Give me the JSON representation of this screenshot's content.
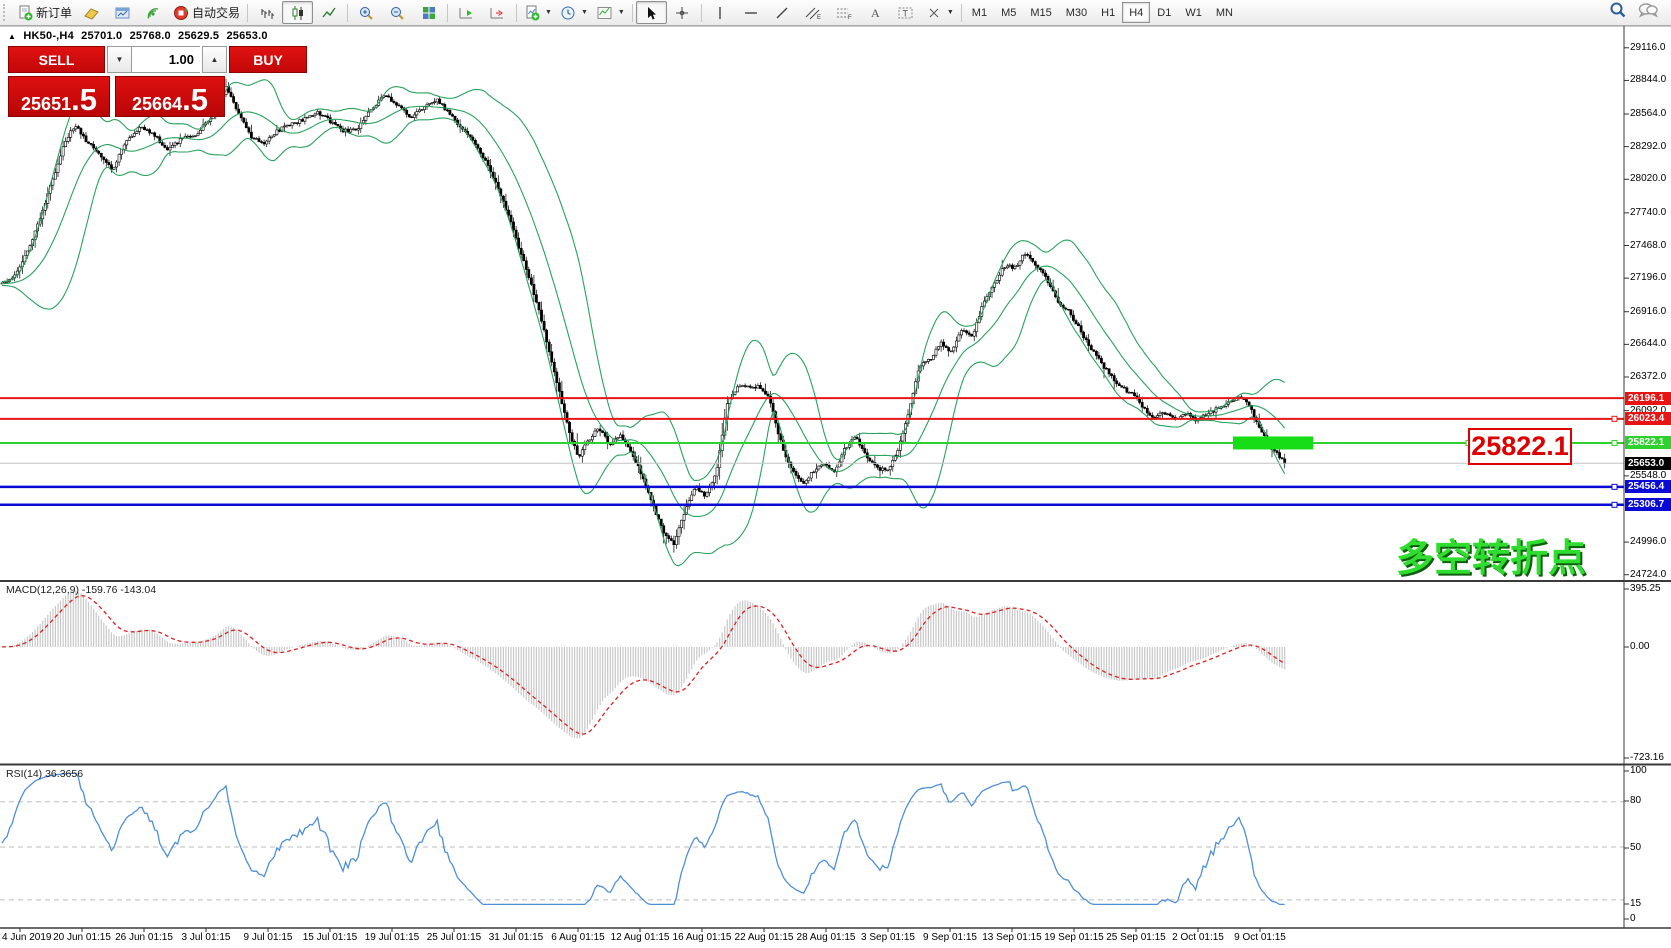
{
  "toolbar": {
    "new_order_label": "新订单",
    "autotrade_label": "自动交易",
    "timeframes": [
      "M1",
      "M5",
      "M15",
      "M30",
      "H1",
      "H4",
      "D1",
      "W1",
      "MN"
    ],
    "active_timeframe": "H4"
  },
  "chart_header": {
    "collapse_arrow": "▲",
    "symbol_period": "HK50-,H4",
    "open": "25701.0",
    "high": "25768.0",
    "low": "25629.5",
    "close": "25653.0"
  },
  "trade_panel": {
    "sell_label": "SELL",
    "buy_label": "BUY",
    "volume": "1.00",
    "spin_down": "▼",
    "spin_up": "▲",
    "sell_price_int": "25651",
    "sell_price_frac": ".5",
    "buy_price_int": "25664",
    "buy_price_frac": ".5"
  },
  "annotations": {
    "callout_price": "25822.1",
    "turning_point_text": "多空转折点"
  },
  "macd_panel": {
    "label": "MACD(12,26,9)",
    "value_main": "-159.76",
    "value_signal": "-143.04"
  },
  "rsi_panel": {
    "label": "RSI(14) 36.3656"
  },
  "chart_data": {
    "type": "candlestick",
    "symbol": "HK50-",
    "timeframe": "H4",
    "last_ohlc": {
      "open": 25701.0,
      "high": 25768.0,
      "low": 25629.5,
      "close": 25653.0
    },
    "bid_price": 25651.5,
    "ask_price": 25664.5,
    "y_ticks": [
      29116.0,
      28844.0,
      28564.0,
      28292.0,
      28020.0,
      27740.0,
      27468.0,
      27196.0,
      26916.0,
      26644.0,
      26372.0,
      26092.0,
      25548.0,
      24996.0,
      24724.0
    ],
    "price_badges": [
      {
        "value": 26196.1,
        "color": "#e81414"
      },
      {
        "value": 26023.4,
        "color": "#e81414"
      },
      {
        "value": 25822.1,
        "color": "#2fd12f"
      },
      {
        "value": 25653.0,
        "color": "#000000"
      },
      {
        "value": 25456.4,
        "color": "#0a0ad6"
      },
      {
        "value": 25306.7,
        "color": "#0a0ad6"
      }
    ],
    "h_lines": [
      {
        "value": 26196.1,
        "color": "#e81414",
        "w": 2,
        "handles": []
      },
      {
        "value": 26023.4,
        "color": "#e81414",
        "w": 2,
        "handles": [
          1612
        ]
      },
      {
        "value": 25822.1,
        "color": "#2fd12f",
        "w": 2,
        "handles": [
          1466,
          1612
        ]
      },
      {
        "value": 25653.0,
        "color": "#c4c4c4",
        "w": 1,
        "handles": []
      },
      {
        "value": 25456.4,
        "color": "#0a0ad6",
        "w": 2.5,
        "handles": [
          1612
        ]
      },
      {
        "value": 25306.7,
        "color": "#0a0ad6",
        "w": 2.5,
        "handles": [
          1612
        ]
      }
    ],
    "highlight_bar": {
      "x": 1233,
      "width": 80,
      "price": 25822.1,
      "thickness": 13,
      "color": "#17dd17"
    },
    "time_labels": [
      "4 Jun 2019",
      "20 Jun 01:15",
      "26 Jun 01:15",
      "3 Jul 01:15",
      "9 Jul 01:15",
      "15 Jul 01:15",
      "19 Jul 01:15",
      "25 Jul 01:15",
      "31 Jul 01:15",
      "6 Aug 01:15",
      "12 Aug 01:15",
      "16 Aug 01:15",
      "22 Aug 01:15",
      "28 Aug 01:15",
      "3 Sep 01:15",
      "9 Sep 01:15",
      "13 Sep 01:15",
      "19 Sep 01:15",
      "25 Sep 01:15",
      "2 Oct 01:15",
      "9 Oct 01:15"
    ],
    "indicators": {
      "bollinger": {
        "period": 20,
        "deviation": 2,
        "color": "#2aa25c"
      },
      "macd": {
        "fast": 12,
        "slow": 26,
        "signal": 9,
        "main": -159.76,
        "signal_value": -143.04,
        "axis": {
          "max": 395.25,
          "zero": 0.0,
          "min": -723.16
        },
        "hist_color": "#c8c8c8",
        "signal_color": "#e02020"
      },
      "rsi": {
        "period": 14,
        "value": 36.3656,
        "levels": [
          80,
          50,
          15
        ],
        "axis": [
          100,
          80,
          50,
          15,
          0
        ],
        "color": "#4f8fd8"
      }
    },
    "price_anchors": {
      "x": [
        0,
        16,
        32,
        48,
        64,
        75,
        85,
        101,
        112,
        126,
        141,
        155,
        168,
        181,
        197,
        213,
        226,
        237,
        251,
        264,
        277,
        290,
        304,
        318,
        331,
        343,
        357,
        371,
        384,
        397,
        411,
        424,
        437,
        450,
        464,
        478,
        490,
        503,
        515,
        527,
        538,
        549,
        559,
        568,
        578,
        589,
        599,
        610,
        620,
        631,
        642,
        653,
        663,
        674,
        685,
        695,
        706,
        717,
        727,
        738,
        749,
        759,
        770,
        780,
        791,
        802,
        813,
        823,
        834,
        845,
        855,
        866,
        877,
        887,
        898,
        909,
        919,
        930,
        941,
        951,
        962,
        973,
        983,
        994,
        1005,
        1015,
        1026,
        1037,
        1047,
        1058,
        1069,
        1079,
        1090,
        1100,
        1111,
        1122,
        1133,
        1143,
        1154,
        1164,
        1175,
        1186,
        1197,
        1207,
        1218,
        1228,
        1239,
        1250,
        1260,
        1271,
        1280,
        1285
      ],
      "close": [
        27150,
        27220,
        27500,
        27900,
        28300,
        28480,
        28350,
        28220,
        28100,
        28330,
        28460,
        28380,
        28270,
        28350,
        28400,
        28560,
        28780,
        28600,
        28380,
        28320,
        28420,
        28480,
        28520,
        28580,
        28500,
        28420,
        28440,
        28600,
        28720,
        28640,
        28540,
        28620,
        28680,
        28560,
        28420,
        28280,
        28100,
        27850,
        27550,
        27250,
        26950,
        26600,
        26250,
        25950,
        25700,
        25850,
        25950,
        25800,
        25880,
        25760,
        25550,
        25300,
        25080,
        24980,
        25250,
        25450,
        25380,
        25600,
        26150,
        26300,
        26280,
        26300,
        26180,
        25850,
        25600,
        25480,
        25580,
        25650,
        25580,
        25780,
        25880,
        25720,
        25620,
        25580,
        25750,
        26100,
        26450,
        26520,
        26650,
        26580,
        26780,
        26720,
        26980,
        27150,
        27300,
        27280,
        27420,
        27300,
        27180,
        27000,
        26920,
        26780,
        26620,
        26500,
        26380,
        26280,
        26220,
        26120,
        26030,
        26080,
        26020,
        26070,
        26010,
        26060,
        26110,
        26160,
        26210,
        26120,
        25940,
        25790,
        25700,
        25653
      ]
    }
  }
}
